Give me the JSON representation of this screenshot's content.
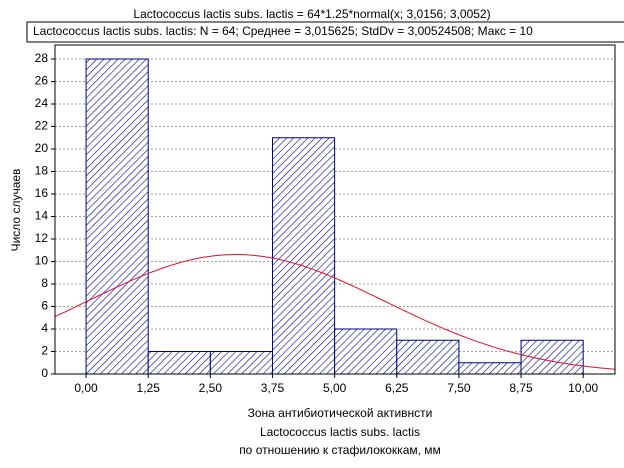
{
  "chart_data": {
    "type": "histogram",
    "title": "Lactococcus lactis subs. lactis = 64*1.25*normal(x; 3,0156; 3,0052)",
    "legend_text": "Lactococcus lactis subs. lactis:   N = 64; Среднее = 3,015625; StdDv = 3,00524508; Макс = 10",
    "x_label": [
      "Зона антибиотической активнсти",
      "Lactococcus lactis subs. lactis",
      "по отношению к стафилококкам, мм"
    ],
    "y_label": "Число случаев",
    "bins": [
      0,
      1.25,
      2.5,
      3.75,
      5,
      6.25,
      7.5,
      8.75,
      10
    ],
    "values": [
      28,
      2,
      2,
      21,
      4,
      3,
      1,
      3
    ],
    "color": "#000080",
    "curve": {
      "n": 64,
      "bin_width": 1.25,
      "mean": 3.0156,
      "sd": 3.0052,
      "color": "#e0102a"
    },
    "xlim": [
      -0.625,
      10.64
    ],
    "ylim": [
      0,
      28
    ],
    "xticks": [
      {
        "value": 0,
        "label": "0,00"
      },
      {
        "value": 1.25,
        "label": "1,25"
      },
      {
        "value": 2.5,
        "label": "2,50"
      },
      {
        "value": 3.75,
        "label": "3,75"
      },
      {
        "value": 5,
        "label": "5,00"
      },
      {
        "value": 6.25,
        "label": "6,25"
      },
      {
        "value": 7.5,
        "label": "7,50"
      },
      {
        "value": 8.75,
        "label": "8,75"
      },
      {
        "value": 10,
        "label": "10,00"
      }
    ],
    "yticks": [
      0,
      2,
      4,
      6,
      8,
      10,
      12,
      14,
      16,
      18,
      20,
      22,
      24,
      26,
      28
    ],
    "grid": true
  }
}
